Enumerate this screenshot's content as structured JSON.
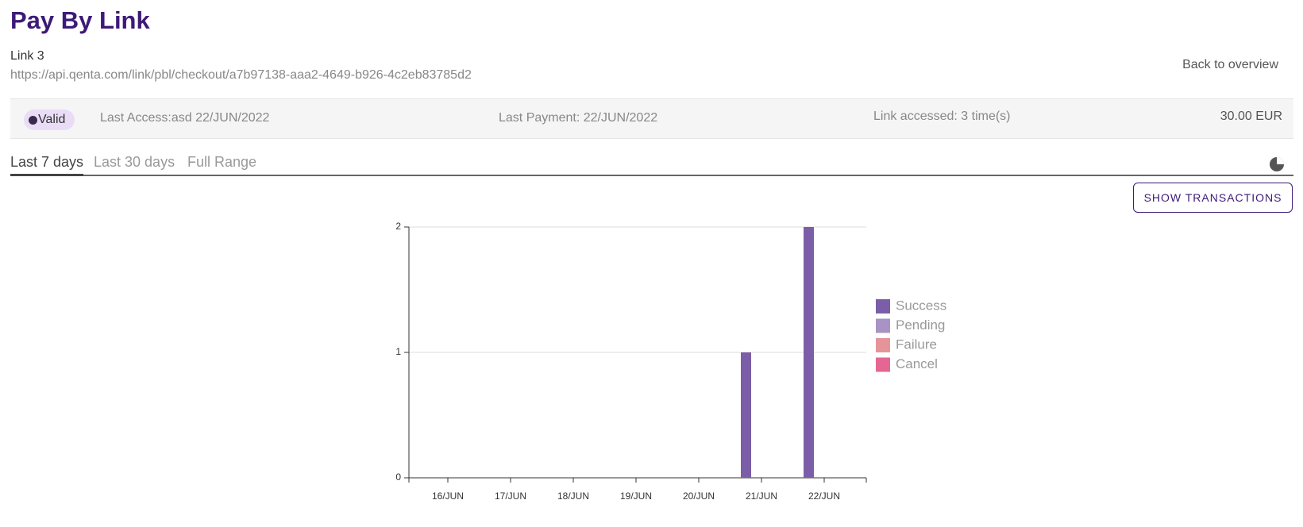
{
  "header": {
    "title": "Pay By Link",
    "link_name": "Link 3",
    "url": "https://api.qenta.com/link/pbl/checkout/a7b97138-aaa2-4649-b926-4c2eb83785d2",
    "back": "Back to overview"
  },
  "info": {
    "status": "Valid",
    "last_access": "Last Access:asd 22/JUN/2022",
    "last_payment": "Last Payment: 22/JUN/2022",
    "accessed": "Link accessed: 3 time(s)",
    "amount": "30.00 EUR"
  },
  "tabs": [
    "Last 7 days",
    "Last 30 days",
    "Full Range"
  ],
  "button": "SHOW TRANSACTIONS",
  "chart_data": {
    "type": "bar",
    "stacked": true,
    "categories": [
      "16/JUN",
      "17/JUN",
      "18/JUN",
      "19/JUN",
      "20/JUN",
      "21/JUN",
      "22/JUN"
    ],
    "series": [
      {
        "name": "Success",
        "color": "#7b5ea7",
        "values": [
          0,
          0,
          0,
          0,
          0,
          1,
          2
        ]
      },
      {
        "name": "Pending",
        "color": "#a893c4",
        "values": [
          0,
          0,
          0,
          0,
          0,
          0,
          0
        ]
      },
      {
        "name": "Failure",
        "color": "#e5949a",
        "values": [
          0,
          0,
          0,
          0,
          0,
          0,
          0
        ]
      },
      {
        "name": "Cancel",
        "color": "#e46692",
        "values": [
          0,
          0,
          0,
          0,
          0,
          0,
          0
        ]
      }
    ],
    "ylim": [
      0,
      2
    ],
    "yticks": [
      0,
      1,
      2
    ],
    "grid": true
  }
}
